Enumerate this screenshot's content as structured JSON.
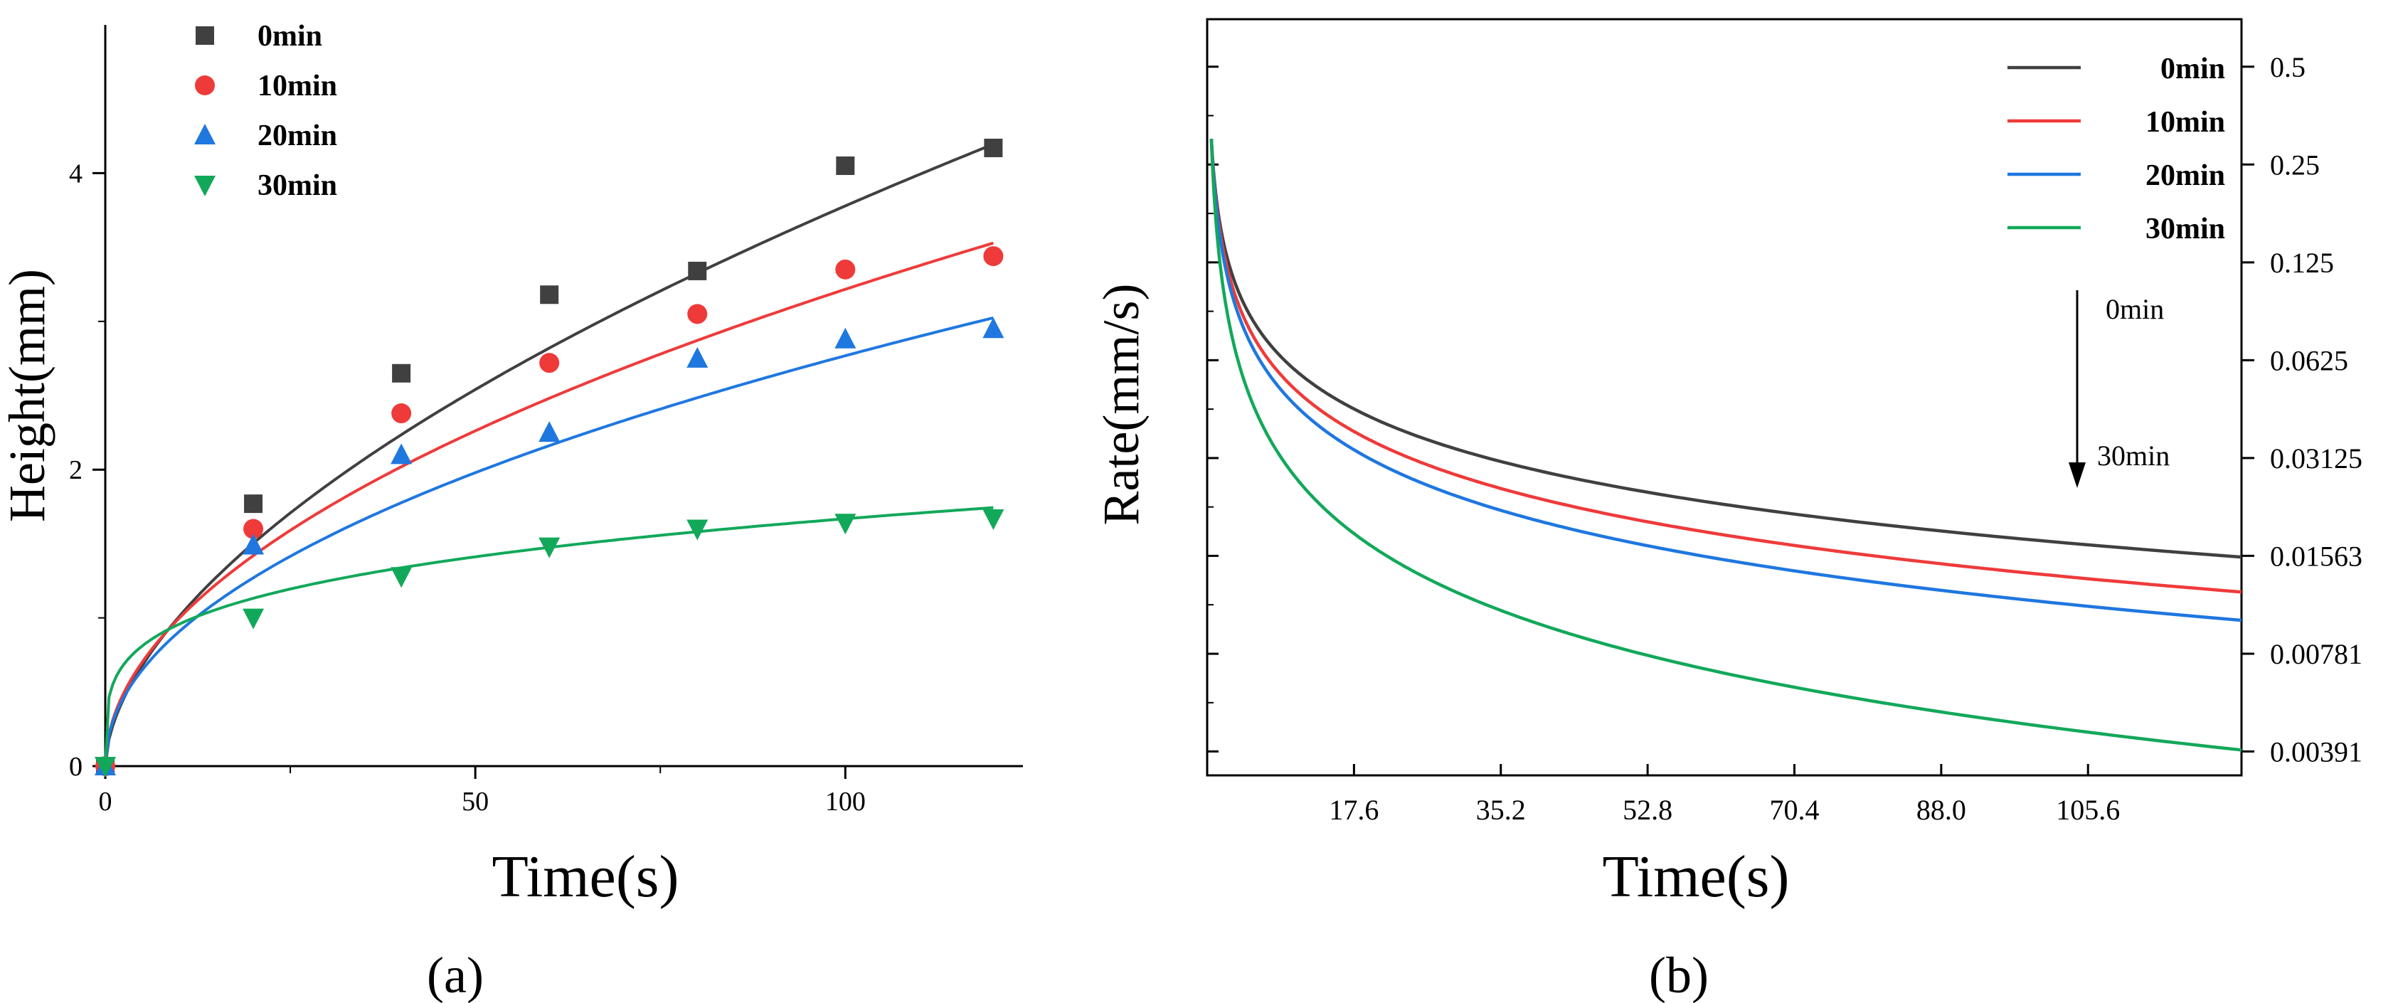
{
  "chart_data": [
    {
      "panel_label": "(a)",
      "type": "scatter",
      "xlabel": "Time(s)",
      "ylabel": "Height(mm)",
      "xlim": [
        0,
        124
      ],
      "ylim": [
        0,
        5
      ],
      "xticks": [
        0,
        50,
        100
      ],
      "yticks": [
        0,
        2,
        4
      ],
      "legend_position": "top-left",
      "series": [
        {
          "name": "0min",
          "color": "#404040",
          "marker": "square",
          "x": [
            0,
            20,
            40,
            60,
            80,
            100,
            120
          ],
          "y": [
            0,
            1.77,
            2.65,
            3.18,
            3.34,
            4.05,
            4.17
          ],
          "fit": {
            "a": 0.27,
            "b": 0.573
          }
        },
        {
          "name": "10min",
          "color": "#ef3a3a",
          "marker": "circle",
          "x": [
            0,
            20,
            40,
            60,
            80,
            100,
            120
          ],
          "y": [
            0,
            1.6,
            2.38,
            2.72,
            3.05,
            3.35,
            3.44
          ],
          "fit": {
            "a": 0.31,
            "b": 0.508
          }
        },
        {
          "name": "20min",
          "color": "#1f77e0",
          "marker": "triangle-up",
          "x": [
            0,
            20,
            40,
            60,
            80,
            100,
            120
          ],
          "y": [
            0,
            1.49,
            2.1,
            2.25,
            2.75,
            2.88,
            2.95
          ],
          "fit": {
            "a": 0.298,
            "b": 0.484
          }
        },
        {
          "name": "30min",
          "color": "#12a85a",
          "marker": "triangle-down",
          "x": [
            0,
            20,
            40,
            60,
            80,
            100,
            120
          ],
          "y": [
            0,
            1.0,
            1.28,
            1.48,
            1.6,
            1.64,
            1.67
          ],
          "fit": {
            "a": 0.55,
            "b": 0.241
          }
        }
      ]
    },
    {
      "panel_label": "(b)",
      "type": "line",
      "xlabel": "Time(s)",
      "ylabel": "Rate(mm/s)",
      "xlim": [
        0,
        124
      ],
      "y_scale": "log2",
      "ylim": [
        0.0033,
        0.7
      ],
      "xticks": [
        17.6,
        35.2,
        52.8,
        70.4,
        88.0,
        105.6
      ],
      "xtick_labels": [
        "17.6",
        "35.2",
        "52.8",
        "70.4",
        "88.0",
        "105.6"
      ],
      "yticks_right": [
        0.5,
        0.25,
        0.125,
        0.0625,
        0.03125,
        0.01563,
        0.00781,
        0.00391
      ],
      "ytick_labels_right": [
        "0.5",
        "0.25",
        "0.125",
        "0.0625",
        "0.03125",
        "0.01563",
        "0.00781",
        "0.00391"
      ],
      "legend_position": "top-right",
      "annotation": {
        "from": "0min",
        "to": "30min",
        "direction": "down"
      },
      "series": [
        {
          "name": "0min",
          "color": "#404040",
          "x_start": 0.5,
          "x_end": 124,
          "y_start": 0.3,
          "y_end": 0.0155
        },
        {
          "name": "10min",
          "color": "#ef3a3a",
          "x_start": 0.5,
          "x_end": 124,
          "y_start": 0.3,
          "y_end": 0.0121
        },
        {
          "name": "20min",
          "color": "#1f77e0",
          "x_start": 0.5,
          "x_end": 124,
          "y_start": 0.3,
          "y_end": 0.0099
        },
        {
          "name": "30min",
          "color": "#12a85a",
          "x_start": 0.5,
          "x_end": 124,
          "y_start": 0.3,
          "y_end": 0.00395
        }
      ]
    }
  ]
}
